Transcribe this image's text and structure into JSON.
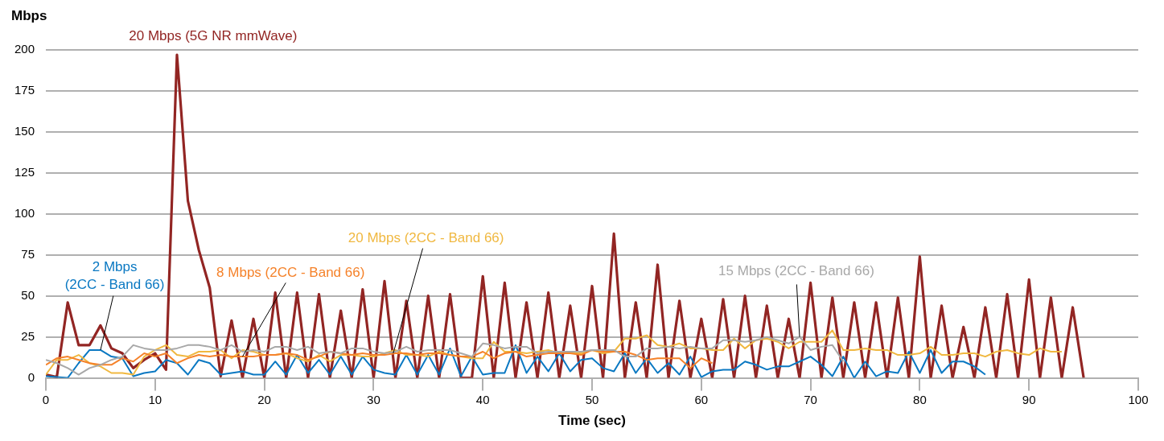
{
  "chart_data": {
    "type": "line",
    "xlabel": "Time (sec)",
    "ylabel": "Mbps",
    "x": [
      0,
      1,
      2,
      3,
      4,
      5,
      6,
      7,
      8,
      9,
      10,
      11,
      12,
      13,
      14,
      15,
      16,
      17,
      18,
      19,
      20,
      21,
      22,
      23,
      24,
      25,
      26,
      27,
      28,
      29,
      30,
      31,
      32,
      33,
      34,
      35,
      36,
      37,
      38,
      39,
      40,
      41,
      42,
      43,
      44,
      45,
      46,
      47,
      48,
      49,
      50,
      51,
      52,
      53,
      54,
      55,
      56,
      57,
      58,
      59,
      60,
      61,
      62,
      63,
      64,
      65,
      66,
      67,
      68,
      69,
      70,
      71,
      72,
      73,
      74,
      75,
      76,
      77,
      78,
      79,
      80,
      81,
      82,
      83,
      84,
      85,
      86,
      87,
      88,
      89,
      90,
      91,
      92,
      93,
      94,
      95
    ],
    "xlim": [
      0,
      100
    ],
    "xticks": [
      0,
      10,
      20,
      30,
      40,
      50,
      60,
      70,
      80,
      90,
      100
    ],
    "ylim": [
      0,
      200
    ],
    "yticks": [
      0,
      25,
      50,
      75,
      100,
      125,
      150,
      175,
      200
    ],
    "grid": "y",
    "legend": false,
    "marker": "none",
    "line_style": "solid",
    "series": [
      {
        "name": "15 Mbps (2CC - Band 66)",
        "color": "#a8a8a8",
        "values": [
          11,
          9,
          6,
          2,
          6,
          8,
          11,
          13,
          20,
          18,
          17,
          17,
          18,
          20,
          20,
          19,
          17,
          20,
          16,
          17,
          16,
          19,
          19,
          17,
          19,
          15,
          16,
          15,
          18,
          18,
          16,
          15,
          16,
          19,
          16,
          17,
          17,
          17,
          15,
          13,
          21,
          20,
          18,
          19,
          19,
          15,
          16,
          16,
          16,
          16,
          17,
          17,
          17,
          13,
          13,
          18,
          18,
          19,
          18,
          19,
          18,
          18,
          23,
          23,
          22,
          23,
          25,
          23,
          21,
          25,
          17,
          19,
          20,
          10,
          null,
          null,
          null,
          null,
          null,
          null,
          null,
          null,
          null,
          null,
          null,
          null,
          null,
          null,
          null,
          null,
          null,
          null,
          null,
          null,
          null,
          null
        ]
      },
      {
        "name": "8 Mbps (2CC - Band 66)",
        "color": "#f5822a",
        "values": [
          8,
          12,
          13,
          11,
          9,
          8,
          8,
          12,
          10,
          15,
          13,
          15,
          9,
          12,
          14,
          13,
          14,
          13,
          13,
          13,
          14,
          14,
          15,
          14,
          11,
          13,
          16,
          15,
          14,
          15,
          14,
          14,
          15,
          15,
          14,
          15,
          15,
          14,
          13,
          13,
          16,
          12,
          15,
          16,
          13,
          14,
          15,
          15,
          15,
          14,
          17,
          16,
          16,
          16,
          14,
          11,
          12,
          12,
          12,
          6,
          12,
          9,
          null,
          null,
          null,
          null,
          null,
          null,
          null,
          null,
          null,
          null,
          null,
          null,
          null,
          null,
          null,
          null,
          null,
          null,
          null,
          null,
          null,
          null,
          null,
          null,
          null,
          null,
          null,
          null,
          null,
          null,
          null,
          null,
          null,
          null
        ]
      },
      {
        "name": "20 Mbps (2CC - Band 66)",
        "color": "#f0b840",
        "values": [
          2,
          11,
          11,
          14,
          9,
          7,
          3,
          3,
          2,
          13,
          17,
          20,
          14,
          13,
          16,
          16,
          17,
          12,
          17,
          16,
          14,
          14,
          15,
          12,
          10,
          14,
          10,
          14,
          14,
          13,
          13,
          15,
          17,
          14,
          14,
          13,
          16,
          14,
          13,
          12,
          12,
          22,
          16,
          16,
          15,
          16,
          17,
          15,
          15,
          15,
          17,
          15,
          16,
          24,
          24,
          26,
          20,
          19,
          21,
          18,
          18,
          17,
          17,
          24,
          18,
          23,
          24,
          22,
          18,
          22,
          22,
          22,
          29,
          17,
          17,
          18,
          17,
          17,
          14,
          14,
          15,
          19,
          14,
          14,
          15,
          15,
          13,
          16,
          17,
          15,
          14,
          18,
          16,
          16,
          null,
          null
        ]
      },
      {
        "name": "2 Mbps (2CC - Band 66)",
        "color": "#0a78c2",
        "values": [
          1,
          0.5,
          0,
          9,
          17,
          17,
          13,
          12,
          1,
          3,
          4,
          11,
          9,
          2,
          11,
          9,
          2,
          3,
          4,
          2,
          2,
          10,
          2,
          14,
          3,
          11,
          2,
          13,
          2,
          13,
          5,
          3,
          2,
          14,
          2,
          14,
          2,
          18,
          1,
          13,
          2,
          3,
          3,
          20,
          3,
          13,
          4,
          15,
          4,
          11,
          12,
          6,
          4,
          15,
          3,
          12,
          3,
          9,
          2,
          13,
          0.5,
          4,
          5,
          5,
          10,
          8,
          5,
          7,
          7,
          10,
          13,
          8,
          1,
          13,
          0,
          10,
          1,
          4,
          3,
          16,
          3,
          17,
          3,
          10,
          10,
          7,
          2,
          null,
          null,
          null,
          null,
          null,
          null,
          null,
          null,
          null
        ]
      },
      {
        "name": "20 Mbps (5G NR mmWave)",
        "color": "#922523",
        "values": [
          2,
          0.5,
          46,
          20,
          20,
          32,
          18,
          15,
          6,
          11,
          15,
          5,
          197,
          108,
          78,
          55,
          1,
          35,
          0,
          36,
          0,
          52,
          0,
          52,
          0,
          51,
          0,
          41,
          0,
          54,
          0,
          59,
          0,
          47,
          0,
          50,
          0,
          51,
          0,
          0,
          62,
          0,
          58,
          0,
          46,
          0,
          52,
          0,
          44,
          0,
          56,
          0,
          88,
          0,
          46,
          0,
          69,
          0,
          47,
          0,
          36,
          0,
          48,
          0,
          50,
          0,
          44,
          0,
          36,
          0,
          58,
          0,
          49,
          0,
          46,
          0,
          46,
          0,
          49,
          0,
          74,
          0,
          44,
          0,
          31,
          0,
          43,
          0,
          51,
          0,
          60,
          0,
          49,
          0,
          43,
          0
        ]
      }
    ]
  }
}
